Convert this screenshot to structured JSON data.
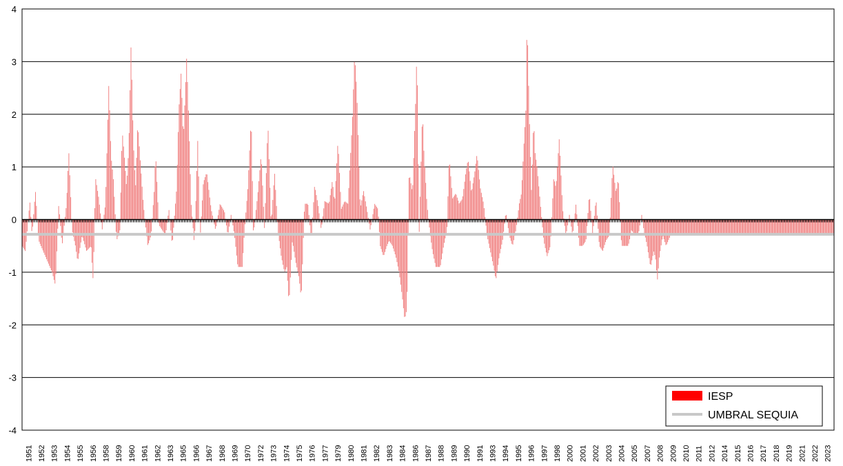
{
  "chart_data": {
    "type": "bar",
    "title": "",
    "xlabel": "",
    "ylabel": "",
    "ylim": [
      -4,
      4
    ],
    "yticks": [
      4,
      3,
      2,
      1,
      0,
      -1,
      -2,
      -3,
      -4
    ],
    "x_start": 1951,
    "x_end": 2023,
    "xtick_labels": [
      "1951",
      "1952",
      "1953",
      "1954",
      "1955",
      "1956",
      "1958",
      "1959",
      "1960",
      "1961",
      "1962",
      "1963",
      "1965",
      "1966",
      "1967",
      "1968",
      "1969",
      "1970",
      "1972",
      "1973",
      "1974",
      "1975",
      "1976",
      "1977",
      "1979",
      "1980",
      "1981",
      "1982",
      "1983",
      "1984",
      "1986",
      "1987",
      "1988",
      "1989",
      "1990",
      "1991",
      "1993",
      "1994",
      "1995",
      "1996",
      "1997",
      "1998",
      "2000",
      "2001",
      "2002",
      "2003",
      "2004",
      "2005",
      "2007",
      "2008",
      "2009",
      "2010",
      "2011",
      "2012",
      "2014",
      "2015",
      "2016",
      "2017",
      "2018",
      "2019",
      "2021",
      "2022",
      "2023"
    ],
    "grid": true,
    "legend_position": "bottom-right",
    "series": [
      {
        "name": "IESP",
        "kind": "monthly-bars",
        "color": "#f08080",
        "legend_color": "#ff0000",
        "anchors": [
          [
            1951.0,
            -0.5
          ],
          [
            1951.3,
            -0.6
          ],
          [
            1951.7,
            0.35
          ],
          [
            1951.9,
            -0.3
          ],
          [
            1952.2,
            0.55
          ],
          [
            1952.5,
            -0.4
          ],
          [
            1952.9,
            -0.6
          ],
          [
            1953.3,
            -0.8
          ],
          [
            1953.7,
            -1.0
          ],
          [
            1954.0,
            -1.25
          ],
          [
            1954.3,
            0.3
          ],
          [
            1954.6,
            -0.5
          ],
          [
            1955.0,
            0.3
          ],
          [
            1955.2,
            1.3
          ],
          [
            1955.5,
            -0.2
          ],
          [
            1955.8,
            -0.5
          ],
          [
            1956.0,
            -0.8
          ],
          [
            1956.4,
            -0.3
          ],
          [
            1956.8,
            -0.6
          ],
          [
            1957.2,
            -0.5
          ],
          [
            1957.4,
            -1.2
          ],
          [
            1957.6,
            0.8
          ],
          [
            1957.9,
            0.4
          ],
          [
            1958.2,
            -0.2
          ],
          [
            1958.5,
            0.3
          ],
          [
            1958.8,
            2.6
          ],
          [
            1959.0,
            1.2
          ],
          [
            1959.2,
            0.8
          ],
          [
            1959.5,
            -0.4
          ],
          [
            1959.8,
            -0.2
          ],
          [
            1960.0,
            1.7
          ],
          [
            1960.2,
            1.2
          ],
          [
            1960.4,
            0.6
          ],
          [
            1960.6,
            1.4
          ],
          [
            1960.8,
            3.35
          ],
          [
            1961.0,
            1.5
          ],
          [
            1961.2,
            0.6
          ],
          [
            1961.4,
            1.85
          ],
          [
            1961.6,
            1.2
          ],
          [
            1961.9,
            0.3
          ],
          [
            1962.3,
            -0.5
          ],
          [
            1962.6,
            -0.3
          ],
          [
            1962.9,
            0.6
          ],
          [
            1963.0,
            1.3
          ],
          [
            1963.3,
            -0.1
          ],
          [
            1963.6,
            -0.2
          ],
          [
            1963.9,
            -0.3
          ],
          [
            1964.2,
            0.2
          ],
          [
            1964.5,
            -0.5
          ],
          [
            1964.9,
            0.6
          ],
          [
            1965.1,
            2.1
          ],
          [
            1965.3,
            2.8
          ],
          [
            1965.5,
            1.5
          ],
          [
            1965.8,
            3.1
          ],
          [
            1966.0,
            1.8
          ],
          [
            1966.2,
            0.3
          ],
          [
            1966.5,
            -0.5
          ],
          [
            1966.8,
            1.55
          ],
          [
            1967.0,
            -0.4
          ],
          [
            1967.3,
            0.7
          ],
          [
            1967.6,
            0.9
          ],
          [
            1968.0,
            0.2
          ],
          [
            1968.4,
            -0.2
          ],
          [
            1968.8,
            0.3
          ],
          [
            1969.2,
            0.15
          ],
          [
            1969.5,
            -0.3
          ],
          [
            1969.8,
            0.1
          ],
          [
            1970.1,
            -0.3
          ],
          [
            1970.4,
            -0.9
          ],
          [
            1970.8,
            -0.9
          ],
          [
            1971.0,
            -0.2
          ],
          [
            1971.3,
            0.6
          ],
          [
            1971.6,
            1.95
          ],
          [
            1971.8,
            -0.3
          ],
          [
            1972.2,
            0.5
          ],
          [
            1972.5,
            1.25
          ],
          [
            1972.8,
            -0.2
          ],
          [
            1973.1,
            1.85
          ],
          [
            1973.4,
            -0.1
          ],
          [
            1973.7,
            0.9
          ],
          [
            1974.0,
            -0.2
          ],
          [
            1974.3,
            -0.7
          ],
          [
            1974.6,
            -1.0
          ],
          [
            1974.8,
            -0.9
          ],
          [
            1975.0,
            -1.6
          ],
          [
            1975.3,
            -0.4
          ],
          [
            1975.6,
            -0.8
          ],
          [
            1975.9,
            -1.1
          ],
          [
            1976.1,
            -1.5
          ],
          [
            1976.4,
            0.3
          ],
          [
            1976.7,
            0.3
          ],
          [
            1977.0,
            -0.4
          ],
          [
            1977.3,
            0.65
          ],
          [
            1977.6,
            0.3
          ],
          [
            1977.9,
            -0.2
          ],
          [
            1978.2,
            0.35
          ],
          [
            1978.6,
            0.3
          ],
          [
            1978.9,
            0.75
          ],
          [
            1979.1,
            0.3
          ],
          [
            1979.4,
            1.5
          ],
          [
            1979.7,
            0.2
          ],
          [
            1980.0,
            0.35
          ],
          [
            1980.3,
            0.3
          ],
          [
            1980.7,
            1.9
          ],
          [
            1980.9,
            3.15
          ],
          [
            1981.1,
            2.4
          ],
          [
            1981.4,
            0.2
          ],
          [
            1981.7,
            0.55
          ],
          [
            1982.0,
            0.2
          ],
          [
            1982.3,
            -0.2
          ],
          [
            1982.7,
            0.3
          ],
          [
            1983.0,
            0.2
          ],
          [
            1983.2,
            -0.5
          ],
          [
            1983.5,
            -0.7
          ],
          [
            1983.8,
            -0.5
          ],
          [
            1984.0,
            -0.4
          ],
          [
            1984.3,
            -0.5
          ],
          [
            1984.6,
            -0.7
          ],
          [
            1984.9,
            -1.0
          ],
          [
            1985.2,
            -1.5
          ],
          [
            1985.4,
            -1.9
          ],
          [
            1985.6,
            -1.7
          ],
          [
            1985.8,
            0.9
          ],
          [
            1986.1,
            0.5
          ],
          [
            1986.4,
            2.35
          ],
          [
            1986.5,
            3.3
          ],
          [
            1986.7,
            -0.3
          ],
          [
            1987.0,
            2.1
          ],
          [
            1987.1,
            1.4
          ],
          [
            1987.4,
            0.3
          ],
          [
            1987.7,
            -0.3
          ],
          [
            1987.9,
            -0.6
          ],
          [
            1988.2,
            -0.9
          ],
          [
            1988.6,
            -0.9
          ],
          [
            1988.9,
            -0.5
          ],
          [
            1989.2,
            -0.2
          ],
          [
            1989.4,
            1.2
          ],
          [
            1989.7,
            0.4
          ],
          [
            1990.0,
            0.5
          ],
          [
            1990.3,
            0.3
          ],
          [
            1990.6,
            0.4
          ],
          [
            1990.9,
            0.9
          ],
          [
            1991.1,
            1.15
          ],
          [
            1991.4,
            0.5
          ],
          [
            1991.7,
            0.9
          ],
          [
            1991.9,
            1.25
          ],
          [
            1992.2,
            0.6
          ],
          [
            1992.5,
            0.3
          ],
          [
            1992.8,
            -0.3
          ],
          [
            1993.1,
            -0.6
          ],
          [
            1993.4,
            -0.9
          ],
          [
            1993.6,
            -1.15
          ],
          [
            1993.9,
            -0.7
          ],
          [
            1994.2,
            -0.4
          ],
          [
            1994.5,
            0.15
          ],
          [
            1994.8,
            -0.3
          ],
          [
            1995.1,
            -0.5
          ],
          [
            1995.4,
            -0.2
          ],
          [
            1995.7,
            0.3
          ],
          [
            1995.9,
            0.5
          ],
          [
            1996.1,
            1.35
          ],
          [
            1996.3,
            2.1
          ],
          [
            1996.4,
            3.85
          ],
          [
            1996.6,
            2.0
          ],
          [
            1996.8,
            0.5
          ],
          [
            1997.0,
            1.95
          ],
          [
            1997.1,
            1.3
          ],
          [
            1997.3,
            1.0
          ],
          [
            1997.6,
            0.3
          ],
          [
            1997.9,
            -0.4
          ],
          [
            1998.2,
            -0.7
          ],
          [
            1998.5,
            -0.5
          ],
          [
            1998.8,
            0.8
          ],
          [
            1999.0,
            0.6
          ],
          [
            1999.3,
            1.55
          ],
          [
            1999.6,
            0.2
          ],
          [
            1999.9,
            -0.3
          ],
          [
            2000.2,
            0.1
          ],
          [
            2000.5,
            -0.3
          ],
          [
            2000.8,
            0.3
          ],
          [
            2001.1,
            -0.5
          ],
          [
            2001.4,
            -0.5
          ],
          [
            2001.7,
            -0.4
          ],
          [
            2002.0,
            0.5
          ],
          [
            2002.3,
            -0.3
          ],
          [
            2002.6,
            0.4
          ],
          [
            2002.9,
            -0.5
          ],
          [
            2003.2,
            -0.6
          ],
          [
            2003.5,
            -0.4
          ],
          [
            2003.8,
            -0.3
          ],
          [
            2004.1,
            1.05
          ],
          [
            2004.4,
            0.5
          ],
          [
            2004.6,
            0.8
          ],
          [
            2004.9,
            -0.5
          ],
          [
            2005.2,
            -0.5
          ],
          [
            2005.5,
            -0.5
          ],
          [
            2005.8,
            -0.2
          ],
          [
            2006.1,
            -0.3
          ],
          [
            2006.4,
            -0.3
          ],
          [
            2006.7,
            0.1
          ],
          [
            2006.9,
            -0.2
          ],
          [
            2007.2,
            -0.5
          ],
          [
            2007.5,
            -0.9
          ],
          [
            2007.8,
            -0.6
          ],
          [
            2008.0,
            -0.8
          ],
          [
            2008.1,
            -1.2
          ],
          [
            2008.3,
            -0.7
          ],
          [
            2008.6,
            -0.3
          ],
          [
            2008.9,
            -0.5
          ],
          [
            2009.3,
            -0.3
          ]
        ]
      },
      {
        "name": "UMBRAL SEQUIA",
        "kind": "constant-line",
        "color": "#c8c8c8",
        "value": -0.28
      }
    ]
  }
}
